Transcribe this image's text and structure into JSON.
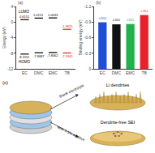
{
  "chart_data": [
    {
      "type": "levels",
      "y_label": "Energy (eV)",
      "categories": [
        "EC",
        "DMC",
        "EMC",
        "TB"
      ],
      "series": [
        {
          "name": "LUMO",
          "values": [
            0.6151,
            1.0151,
            1.0633,
            -1.8625
          ]
        },
        {
          "name": "HOMO",
          "values": [
            -8.2211,
            -7.8687,
            -7.8062,
            -7.9345
          ]
        }
      ],
      "colors": [
        "#000000",
        "#000000",
        "#000000",
        "#e41a1c"
      ],
      "ylim": [
        -12,
        4
      ],
      "yticks": [
        -12,
        -8,
        -4,
        0,
        4
      ],
      "data_labels": true
    },
    {
      "type": "bar",
      "y_label": "Binding energy (eV)",
      "categories": [
        "EC",
        "DMC",
        "EMC",
        "TB"
      ],
      "values": [
        -0.8956,
        -0.8562,
        -0.8621,
        -1.0354
      ],
      "colors": [
        "#1f4fd6",
        "#111111",
        "#22b14c",
        "#e8212a"
      ],
      "ylim": [
        0,
        -1.2
      ],
      "yticks": [
        0,
        -0.3,
        -0.6,
        -0.9,
        -1.2
      ],
      "data_labels": true
    }
  ],
  "panel_labels": [
    "(a)",
    "(b)",
    "(c)"
  ],
  "schematic": {
    "top_label": "Blank electrolyte",
    "top_result": "Li dendrites",
    "bottom_label": "With 0.1% additive",
    "bottom_result": "Dendrite-free SEI"
  }
}
